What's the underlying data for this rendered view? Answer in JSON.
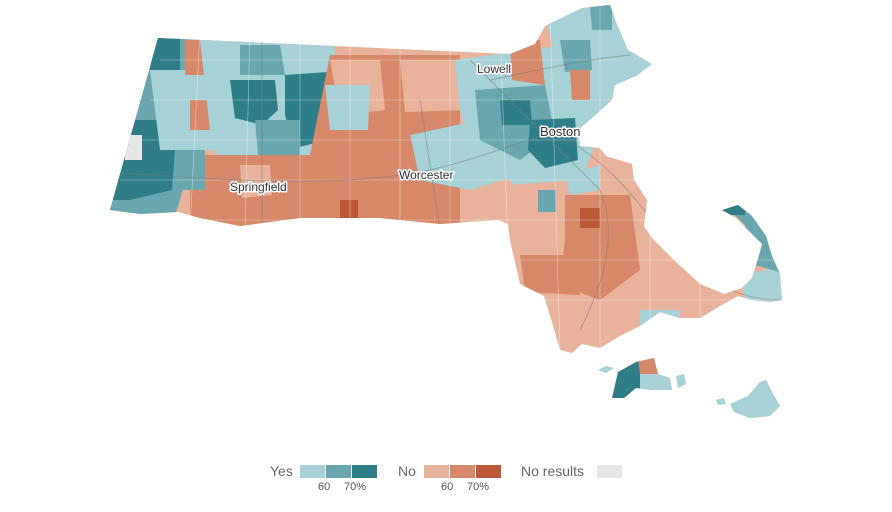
{
  "map": {
    "cities": [
      {
        "name": "Lowell"
      },
      {
        "name": "Boston"
      },
      {
        "name": "Worcester"
      },
      {
        "name": "Springfield"
      }
    ]
  },
  "legend": {
    "yes": {
      "label": "Yes",
      "colors": [
        "#a6d1d7",
        "#6aa6b0",
        "#2f7d89"
      ],
      "ticks": [
        "60",
        "70%"
      ]
    },
    "no": {
      "label": "No",
      "colors": [
        "#e8b39a",
        "#d68868",
        "#bc5838"
      ],
      "ticks": [
        "60",
        "70%"
      ]
    },
    "no_results": {
      "label": "No results",
      "color": "#e6e6e6"
    }
  }
}
